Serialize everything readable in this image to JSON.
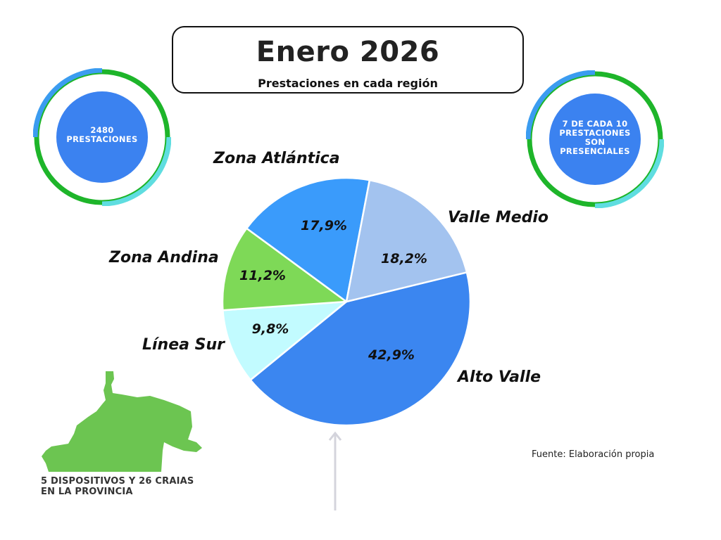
{
  "header": {
    "title": "Enero 2026",
    "subtitle": "Prestaciones en cada región"
  },
  "stats": {
    "left": {
      "line1": "2480",
      "line2": "PRESTACIONES"
    },
    "right": {
      "line1": "7 DE CADA 10",
      "line2": "PRESTACIONES",
      "line3": "SON",
      "line4": "PRESENCIALES"
    }
  },
  "footer": {
    "line1": "5 DISPOSITIVOS Y 26 CRAIAS",
    "line2": "EN LA PROVINCIA"
  },
  "source": "Fuente: Elaboración propia",
  "colors": {
    "ring_blue": "#3b9cf0",
    "ring_green": "#1eb52a",
    "ring_cyan": "#5fdde0",
    "circle_fill": "#3b82f0",
    "map_green": "#6cc551"
  },
  "chart_data": {
    "type": "pie",
    "title": "Prestaciones en cada región",
    "unit": "%",
    "slices": [
      {
        "label": "Alto Valle",
        "value": 42.9,
        "display": "42,9%",
        "color": "#3b86f0"
      },
      {
        "label": "Línea Sur",
        "value": 9.8,
        "display": "9,8%",
        "color": "#c2fbff"
      },
      {
        "label": "Zona Andina",
        "value": 11.2,
        "display": "11,2%",
        "color": "#7ed957"
      },
      {
        "label": "Zona Atlántica",
        "value": 17.9,
        "display": "17,9%",
        "color": "#3a9bfb"
      },
      {
        "label": "Valle Medio",
        "value": 18.2,
        "display": "18,2%",
        "color": "#a3c3ef"
      }
    ]
  }
}
